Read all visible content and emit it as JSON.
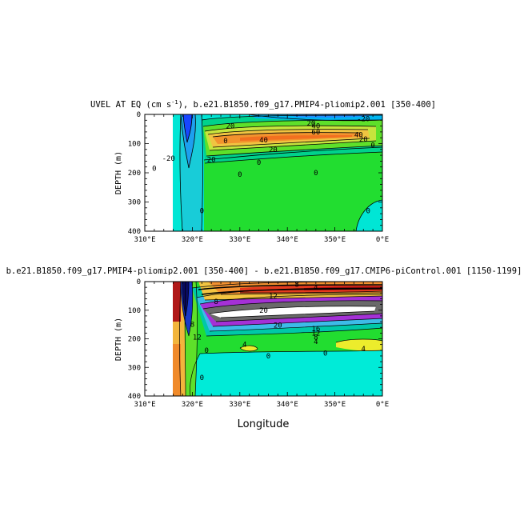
{
  "chart_data": [
    {
      "type": "heatmap",
      "title_prefix": "UVEL AT EQ (cm s",
      "title_sup": "-1",
      "title_suffix": "), b.e21.B1850.f09_g17.PMIP4-pliomip2.001 [350-400]",
      "ylabel": "DEPTH (m)",
      "xlabel": "",
      "xlim": [
        310,
        360
      ],
      "ylim": [
        400,
        0
      ],
      "x_ticks": [
        "310°E",
        "320°E",
        "330°E",
        "340°E",
        "350°E",
        "0°E"
      ],
      "y_ticks": [
        "0",
        "100",
        "200",
        "300",
        "400"
      ],
      "contour_labels": [
        {
          "text": "-20",
          "x": 356,
          "y": 15
        },
        {
          "text": "20",
          "x": 328,
          "y": 40
        },
        {
          "text": "20",
          "x": 345,
          "y": 30
        },
        {
          "text": "40",
          "x": 346,
          "y": 40
        },
        {
          "text": "60",
          "x": 346,
          "y": 60
        },
        {
          "text": "40",
          "x": 355,
          "y": 70
        },
        {
          "text": "20",
          "x": 356,
          "y": 85
        },
        {
          "text": "40",
          "x": 335,
          "y": 88
        },
        {
          "text": "20",
          "x": 337,
          "y": 120
        },
        {
          "text": "20",
          "x": 324,
          "y": 155
        },
        {
          "text": "0",
          "x": 358,
          "y": 105
        },
        {
          "text": "0",
          "x": 327,
          "y": 90
        },
        {
          "text": "0",
          "x": 334,
          "y": 165
        },
        {
          "text": "0",
          "x": 330,
          "y": 205
        },
        {
          "text": "0",
          "x": 346,
          "y": 200
        },
        {
          "text": "0",
          "x": 312,
          "y": 185
        },
        {
          "text": "-20",
          "x": 315,
          "y": 150
        },
        {
          "text": "0",
          "x": 322,
          "y": 330
        },
        {
          "text": "0",
          "x": 357,
          "y": 330
        }
      ]
    },
    {
      "type": "heatmap",
      "title": "b.e21.B1850.f09_g17.PMIP4-pliomip2.001 [350-400] - b.e21.B1850.f09_g17.CMIP6-piControl.001 [1150-1199]",
      "ylabel": "DEPTH (m)",
      "xlabel": "Longitude",
      "xlim": [
        310,
        360
      ],
      "ylim": [
        400,
        0
      ],
      "x_ticks": [
        "310°E",
        "320°E",
        "330°E",
        "340°E",
        "350°E",
        "0°E"
      ],
      "y_ticks": [
        "0",
        "100",
        "200",
        "300",
        "400"
      ],
      "contour_labels": [
        {
          "text": "8",
          "x": 342,
          "y": 10
        },
        {
          "text": "12",
          "x": 337,
          "y": 50
        },
        {
          "text": "4",
          "x": 346,
          "y": 20
        },
        {
          "text": "8",
          "x": 325,
          "y": 70
        },
        {
          "text": "20",
          "x": 335,
          "y": 100
        },
        {
          "text": "20",
          "x": 338,
          "y": 152
        },
        {
          "text": "16",
          "x": 346,
          "y": 165
        },
        {
          "text": "12",
          "x": 346,
          "y": 180
        },
        {
          "text": "8",
          "x": 346,
          "y": 195
        },
        {
          "text": "4",
          "x": 346,
          "y": 210
        },
        {
          "text": "4",
          "x": 356,
          "y": 235
        },
        {
          "text": "0",
          "x": 336,
          "y": 260
        },
        {
          "text": "0",
          "x": 348,
          "y": 250
        },
        {
          "text": "0",
          "x": 323,
          "y": 240
        },
        {
          "text": "12",
          "x": 321,
          "y": 195
        },
        {
          "text": "8",
          "x": 320,
          "y": 150
        },
        {
          "text": "0",
          "x": 322,
          "y": 335
        },
        {
          "text": "4",
          "x": 331,
          "y": 220
        }
      ]
    }
  ]
}
